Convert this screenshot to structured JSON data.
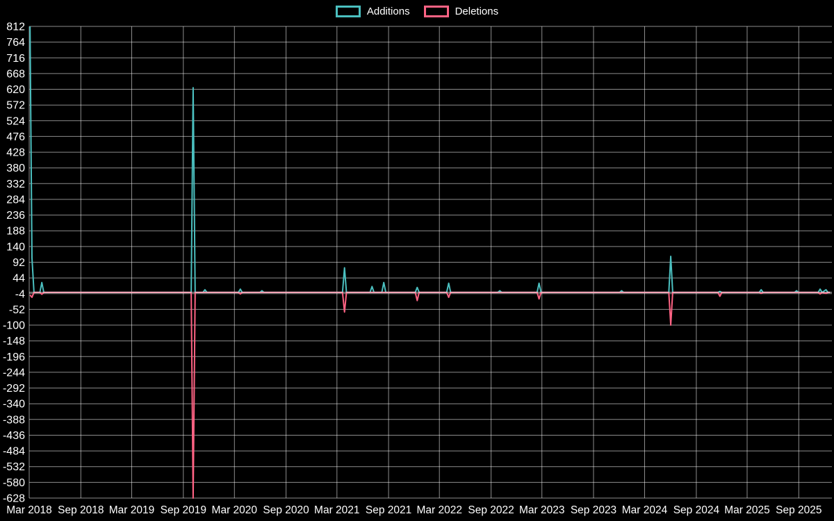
{
  "chart": {
    "background": "#000000",
    "grid_color": "rgba(255,255,255,0.55)",
    "zero_line_color": "rgba(255,255,255,0.8)",
    "text_color": "#ffffff"
  },
  "chart_data": {
    "type": "line",
    "title": "",
    "xlabel": "",
    "ylabel": "",
    "grid": true,
    "legend_position": "top",
    "ylim": [
      -628,
      812
    ],
    "y_ticks": [
      812,
      764,
      716,
      668,
      620,
      572,
      524,
      476,
      428,
      380,
      332,
      284,
      236,
      188,
      140,
      92,
      44,
      -4,
      -52,
      -100,
      -148,
      -196,
      -244,
      -292,
      -340,
      -388,
      -436,
      -484,
      -532,
      -580,
      -628
    ],
    "x_domain": [
      "2018-03-01",
      "2025-12-28"
    ],
    "x_ticks": [
      {
        "label": "Mar 2018",
        "date": "2018-03-01"
      },
      {
        "label": "Sep 2018",
        "date": "2018-09-01"
      },
      {
        "label": "Mar 2019",
        "date": "2019-03-01"
      },
      {
        "label": "Sep 2019",
        "date": "2019-09-01"
      },
      {
        "label": "Mar 2020",
        "date": "2020-03-01"
      },
      {
        "label": "Sep 2020",
        "date": "2020-09-01"
      },
      {
        "label": "Mar 2021",
        "date": "2021-03-01"
      },
      {
        "label": "Sep 2021",
        "date": "2021-09-01"
      },
      {
        "label": "Mar 2022",
        "date": "2022-03-01"
      },
      {
        "label": "Sep 2022",
        "date": "2022-09-01"
      },
      {
        "label": "Mar 2023",
        "date": "2023-03-01"
      },
      {
        "label": "Sep 2023",
        "date": "2023-09-01"
      },
      {
        "label": "Mar 2024",
        "date": "2024-03-01"
      },
      {
        "label": "Sep 2024",
        "date": "2024-09-01"
      },
      {
        "label": "Mar 2025",
        "date": "2025-03-01"
      },
      {
        "label": "Sep 2025",
        "date": "2025-09-01"
      }
    ],
    "series": [
      {
        "name": "Additions",
        "color": "#4bc0c0",
        "points": [
          [
            "2018-03-04",
            812
          ],
          [
            "2018-03-11",
            105
          ],
          [
            "2018-03-18",
            0
          ],
          [
            "2018-04-08",
            0
          ],
          [
            "2018-04-15",
            30
          ],
          [
            "2018-04-22",
            0
          ],
          [
            "2019-09-29",
            0
          ],
          [
            "2019-10-06",
            625
          ],
          [
            "2019-10-13",
            0
          ],
          [
            "2019-11-10",
            0
          ],
          [
            "2019-11-17",
            8
          ],
          [
            "2019-11-24",
            0
          ],
          [
            "2020-03-15",
            0
          ],
          [
            "2020-03-22",
            10
          ],
          [
            "2020-03-29",
            0
          ],
          [
            "2020-05-31",
            0
          ],
          [
            "2020-06-07",
            5
          ],
          [
            "2020-06-14",
            0
          ],
          [
            "2021-03-21",
            0
          ],
          [
            "2021-03-28",
            75
          ],
          [
            "2021-04-04",
            0
          ],
          [
            "2021-06-27",
            0
          ],
          [
            "2021-07-04",
            18
          ],
          [
            "2021-07-11",
            0
          ],
          [
            "2021-08-08",
            0
          ],
          [
            "2021-08-15",
            30
          ],
          [
            "2021-08-22",
            0
          ],
          [
            "2021-12-05",
            0
          ],
          [
            "2021-12-12",
            15
          ],
          [
            "2021-12-19",
            0
          ],
          [
            "2022-03-27",
            0
          ],
          [
            "2022-04-03",
            28
          ],
          [
            "2022-04-10",
            0
          ],
          [
            "2022-09-25",
            0
          ],
          [
            "2022-10-02",
            5
          ],
          [
            "2022-10-09",
            0
          ],
          [
            "2023-02-12",
            0
          ],
          [
            "2023-02-19",
            28
          ],
          [
            "2023-02-26",
            0
          ],
          [
            "2023-12-03",
            0
          ],
          [
            "2023-12-10",
            5
          ],
          [
            "2023-12-17",
            0
          ],
          [
            "2024-05-26",
            0
          ],
          [
            "2024-06-02",
            110
          ],
          [
            "2024-06-09",
            0
          ],
          [
            "2024-11-17",
            0
          ],
          [
            "2024-11-24",
            3
          ],
          [
            "2024-12-01",
            0
          ],
          [
            "2025-04-13",
            0
          ],
          [
            "2025-04-20",
            8
          ],
          [
            "2025-04-27",
            0
          ],
          [
            "2025-08-17",
            0
          ],
          [
            "2025-08-24",
            5
          ],
          [
            "2025-08-31",
            0
          ],
          [
            "2025-11-09",
            0
          ],
          [
            "2025-11-16",
            10
          ],
          [
            "2025-11-23",
            0
          ],
          [
            "2025-12-07",
            8
          ],
          [
            "2025-12-14",
            0
          ],
          [
            "2025-12-21",
            0
          ]
        ]
      },
      {
        "name": "Deletions",
        "color": "#ff6384",
        "points": [
          [
            "2018-03-04",
            -8
          ],
          [
            "2018-03-11",
            -15
          ],
          [
            "2018-03-18",
            0
          ],
          [
            "2018-04-08",
            0
          ],
          [
            "2018-04-15",
            -6
          ],
          [
            "2018-04-22",
            0
          ],
          [
            "2019-09-29",
            0
          ],
          [
            "2019-10-06",
            -628
          ],
          [
            "2019-10-13",
            0
          ],
          [
            "2020-03-15",
            0
          ],
          [
            "2020-03-22",
            -5
          ],
          [
            "2020-03-29",
            0
          ],
          [
            "2021-03-21",
            0
          ],
          [
            "2021-03-28",
            -60
          ],
          [
            "2021-04-04",
            0
          ],
          [
            "2021-12-05",
            0
          ],
          [
            "2021-12-12",
            -25
          ],
          [
            "2021-12-19",
            0
          ],
          [
            "2022-03-27",
            0
          ],
          [
            "2022-04-03",
            -15
          ],
          [
            "2022-04-10",
            0
          ],
          [
            "2023-02-12",
            0
          ],
          [
            "2023-02-19",
            -20
          ],
          [
            "2023-02-26",
            0
          ],
          [
            "2024-05-26",
            0
          ],
          [
            "2024-06-02",
            -100
          ],
          [
            "2024-06-09",
            0
          ],
          [
            "2024-11-17",
            0
          ],
          [
            "2024-11-24",
            -12
          ],
          [
            "2024-12-01",
            0
          ],
          [
            "2025-04-13",
            0
          ],
          [
            "2025-04-20",
            -3
          ],
          [
            "2025-04-27",
            0
          ],
          [
            "2025-11-09",
            0
          ],
          [
            "2025-11-16",
            -5
          ],
          [
            "2025-11-23",
            0
          ],
          [
            "2025-12-07",
            -3
          ],
          [
            "2025-12-14",
            0
          ],
          [
            "2025-12-21",
            0
          ]
        ]
      }
    ]
  }
}
